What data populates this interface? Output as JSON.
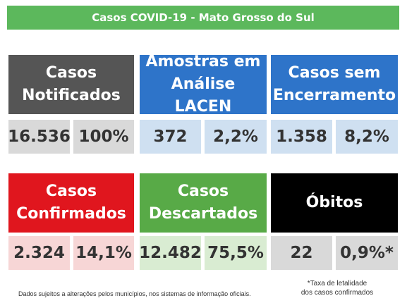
{
  "banner": {
    "title": "Casos COVID-19 - Mato Grosso do Sul",
    "color": "#5cb85c"
  },
  "row1": [
    {
      "label": "Casos\nNotificados",
      "header_color": "#555555",
      "value": "16.536",
      "percent": "100%",
      "value_bg": "#d9d9d9"
    },
    {
      "label": "Amostras em\nAnálise LACEN",
      "header_color": "#2e74c9",
      "value": "372",
      "percent": "2,2%",
      "value_bg": "#cfe0f1"
    },
    {
      "label": "Casos sem\nEncerramento",
      "header_color": "#2e74c9",
      "value": "1.358",
      "percent": "8,2%",
      "value_bg": "#cfe0f1"
    }
  ],
  "row2": [
    {
      "label": "Casos\nConfirmados",
      "header_color": "#e0161e",
      "value": "2.324",
      "percent": "14,1%",
      "value_bg": "#f7d6d6"
    },
    {
      "label": "Casos\nDescartados",
      "header_color": "#58aa47",
      "value": "12.482",
      "percent": "75,5%",
      "value_bg": "#d9ecd2"
    },
    {
      "label": "Óbitos",
      "header_color": "#000000",
      "value": "22",
      "percent": "0,9%*",
      "value_bg": "#d9d9d9"
    }
  ],
  "footnotes": {
    "disclaimer": "Dados sujeitos a alterações pelos municípios, nos sistemas de informação oficiais.",
    "lethality_line1": "*Taxa de letalidade",
    "lethality_line2": "dos casos confirmados"
  }
}
